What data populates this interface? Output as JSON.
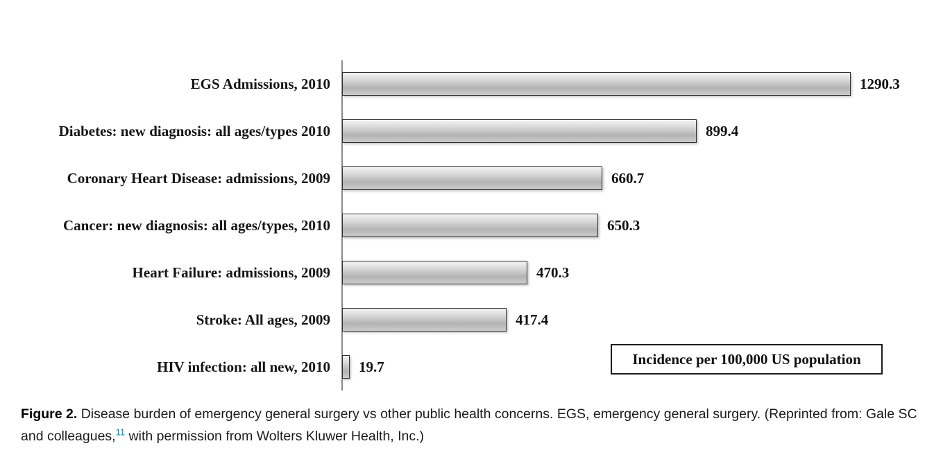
{
  "chart_data": {
    "type": "bar",
    "orientation": "horizontal",
    "categories": [
      "EGS Admissions, 2010",
      "Diabetes: new diagnosis: all ages/types 2010",
      "Coronary Heart Disease: admissions, 2009",
      "Cancer: new diagnosis: all ages/types, 2010",
      "Heart Failure: admissions, 2009",
      "Stroke: All ages, 2009",
      "HIV infection: all new, 2010"
    ],
    "values": [
      1290.3,
      899.4,
      660.7,
      650.3,
      470.3,
      417.4,
      19.7
    ],
    "value_labels": [
      "1290.3",
      "899.4",
      "660.7",
      "650.3",
      "470.3",
      "417.4",
      "19.7"
    ],
    "xlim": [
      0,
      1300
    ],
    "legend_position": "bottom-right",
    "legend_box_label": "Incidence per 100,000 US population",
    "bar_fill": "#c9c9c9",
    "bar_border": "#2f2f2f",
    "grid": false
  },
  "caption": {
    "label": "Figure 2.",
    "text_before_ref": " Disease burden of emergency general surgery vs other public health concerns. EGS, emergency general surgery. (Reprinted from: Gale SC and colleagues,",
    "ref_superscript": "11",
    "ref_color": "#1a7fa0",
    "text_after_ref": " with permission from Wolters Kluwer Health, Inc.)"
  }
}
